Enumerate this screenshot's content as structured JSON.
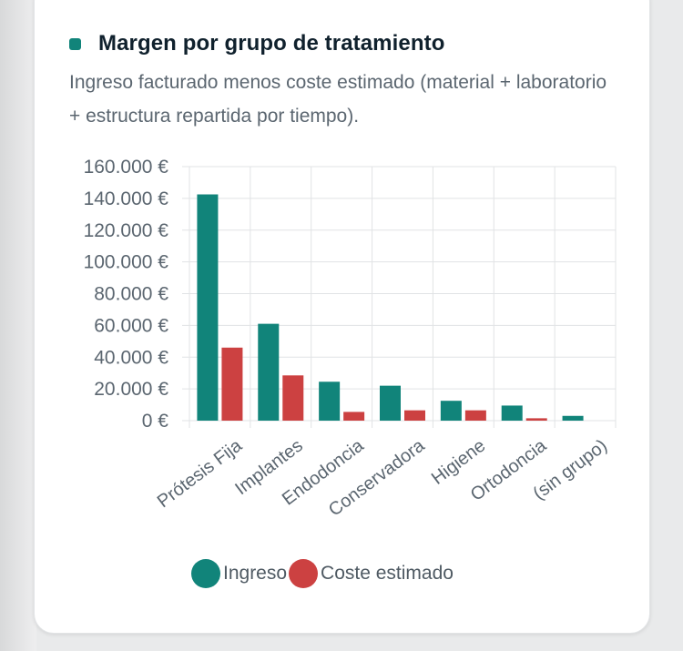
{
  "card": {
    "title": "Margen por grupo de tratamiento",
    "subtitle": "Ingreso facturado menos coste estimado (material + laboratorio + estructura repartida por tiempo).",
    "accent_color": "#11847a"
  },
  "chart_data": {
    "type": "bar",
    "title": "",
    "xlabel": "",
    "ylabel": "",
    "ylim": [
      0,
      160000
    ],
    "yticks": [
      0,
      20000,
      40000,
      60000,
      80000,
      100000,
      120000,
      140000,
      160000
    ],
    "ytick_labels": [
      "0 €",
      "20.000 €",
      "40.000 €",
      "60.000 €",
      "80.000 €",
      "100.000 €",
      "120.000 €",
      "140.000 €",
      "160.000 €"
    ],
    "categories": [
      "Prótesis Fija",
      "Implantes",
      "Endodoncia",
      "Conservadora",
      "Higiene",
      "Ortodoncia",
      "(sin grupo)"
    ],
    "series": [
      {
        "name": "Ingreso",
        "color": "#11847a",
        "values": [
          142500,
          61000,
          24500,
          22000,
          12500,
          9500,
          3000
        ]
      },
      {
        "name": "Coste estimado",
        "color": "#cc4141",
        "values": [
          46000,
          28500,
          5500,
          6500,
          6500,
          1500,
          0
        ]
      }
    ],
    "grid": true,
    "legend_position": "bottom"
  }
}
